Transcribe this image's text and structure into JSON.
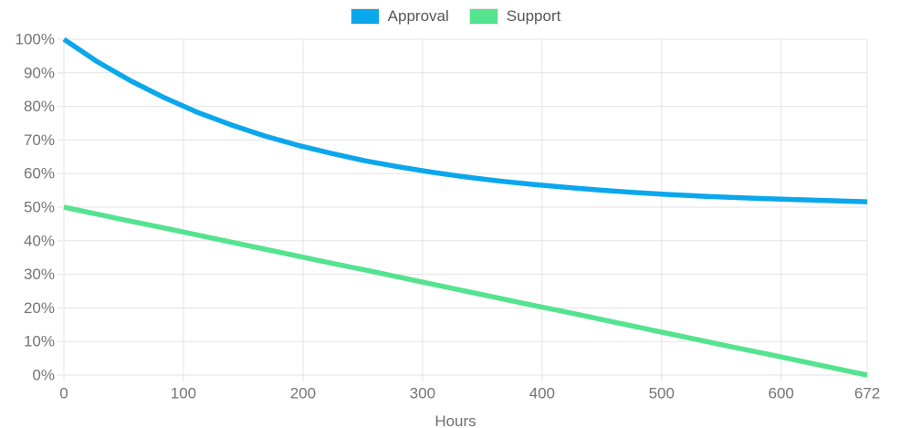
{
  "legend": {
    "items": [
      {
        "label": "Approval",
        "color": "#0ba7ec"
      },
      {
        "label": "Support",
        "color": "#54e38f"
      }
    ]
  },
  "chart_data": {
    "type": "line",
    "title": "",
    "xlabel": "Hours",
    "ylabel": "",
    "xlim": [
      0,
      672
    ],
    "ylim": [
      0,
      100
    ],
    "grid": true,
    "legend_position": "top",
    "x_ticks": [
      0,
      100,
      200,
      300,
      400,
      500,
      600,
      672
    ],
    "y_ticks": [
      0,
      10,
      20,
      30,
      40,
      50,
      60,
      70,
      80,
      90,
      100
    ],
    "y_tick_suffix": "%",
    "x": [
      0,
      28,
      56,
      84,
      112,
      140,
      168,
      196,
      224,
      252,
      280,
      308,
      336,
      364,
      392,
      420,
      448,
      476,
      504,
      532,
      560,
      588,
      616,
      644,
      672
    ],
    "series": [
      {
        "name": "Approval",
        "color": "#0ba7ec",
        "values": [
          100,
          93.3,
          87.6,
          82.6,
          78.2,
          74.5,
          71.2,
          68.4,
          66.0,
          63.8,
          62.0,
          60.4,
          59.0,
          57.8,
          56.8,
          55.9,
          55.1,
          54.4,
          53.8,
          53.3,
          52.9,
          52.5,
          52.2,
          51.9,
          51.6
        ]
      },
      {
        "name": "Support",
        "color": "#54e38f",
        "values": [
          50,
          47.9,
          45.8,
          43.8,
          41.7,
          39.6,
          37.5,
          35.4,
          33.3,
          31.3,
          29.2,
          27.1,
          25.0,
          22.9,
          20.8,
          18.8,
          16.7,
          14.6,
          12.5,
          10.4,
          8.3,
          6.3,
          4.2,
          2.1,
          0
        ]
      }
    ]
  },
  "colors": {
    "grid": "#e3e3e3",
    "axis_text": "#757575",
    "background": "#ffffff"
  }
}
